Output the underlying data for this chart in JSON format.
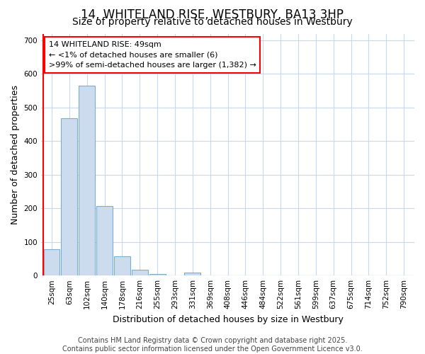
{
  "title": "14, WHITELAND RISE, WESTBURY, BA13 3HP",
  "subtitle": "Size of property relative to detached houses in Westbury",
  "xlabel": "Distribution of detached houses by size in Westbury",
  "ylabel": "Number of detached properties",
  "bin_labels": [
    "25sqm",
    "63sqm",
    "102sqm",
    "140sqm",
    "178sqm",
    "216sqm",
    "255sqm",
    "293sqm",
    "331sqm",
    "369sqm",
    "408sqm",
    "446sqm",
    "484sqm",
    "522sqm",
    "561sqm",
    "599sqm",
    "637sqm",
    "675sqm",
    "714sqm",
    "752sqm",
    "790sqm"
  ],
  "bar_heights": [
    78,
    468,
    565,
    207,
    57,
    18,
    5,
    0,
    8,
    0,
    0,
    0,
    0,
    0,
    0,
    0,
    0,
    0,
    0,
    0,
    0
  ],
  "bar_color": "#ccdcee",
  "bar_edge_color": "#7aafd4",
  "ylim": [
    0,
    720
  ],
  "yticks": [
    0,
    100,
    200,
    300,
    400,
    500,
    600,
    700
  ],
  "annotation_text_line1": "14 WHITELAND RISE: 49sqm",
  "annotation_text_line2": "← <1% of detached houses are smaller (6)",
  "annotation_text_line3": ">99% of semi-detached houses are larger (1,382) →",
  "footer_line1": "Contains HM Land Registry data © Crown copyright and database right 2025.",
  "footer_line2": "Contains public sector information licensed under the Open Government Licence v3.0.",
  "background_color": "#ffffff",
  "plot_bg_color": "#ffffff",
  "grid_color": "#c8d8ee",
  "title_fontsize": 12,
  "subtitle_fontsize": 10,
  "axis_label_fontsize": 9,
  "tick_fontsize": 7.5,
  "footer_fontsize": 7,
  "annotation_fontsize": 8
}
